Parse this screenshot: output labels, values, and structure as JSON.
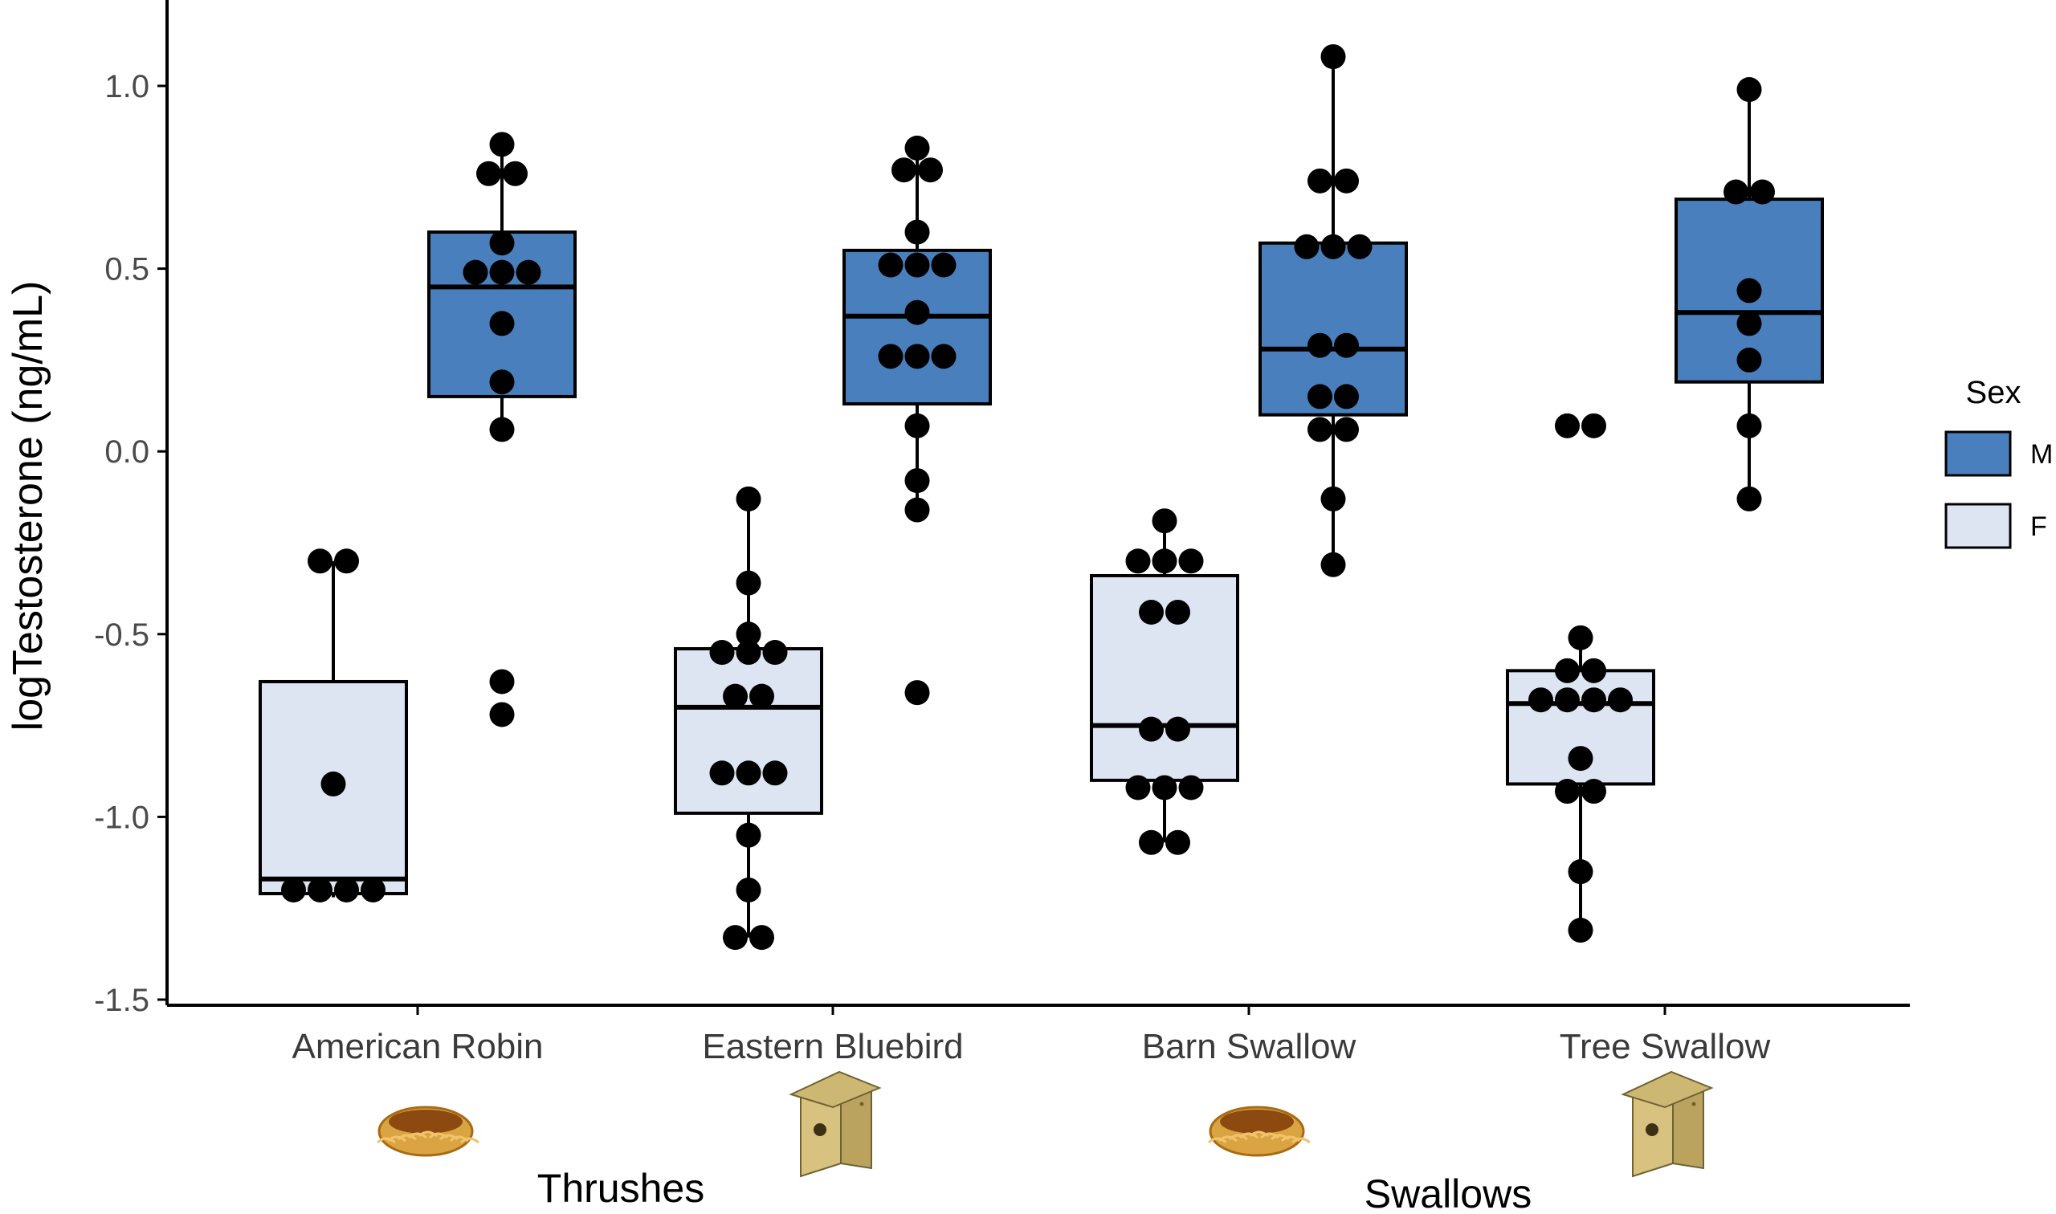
{
  "chart_data": {
    "type": "box",
    "ylabel": "logTestosterone (ng/mL)",
    "xlabel": "",
    "ylim": [
      -1.5,
      1.2
    ],
    "y_ticks": [
      1.0,
      0.5,
      0.0,
      -0.5,
      -1.0,
      -1.5
    ],
    "y_tick_labels": [
      "1.0",
      "0.5",
      "0.0",
      "-0.5",
      "-1.0",
      "-1.5"
    ],
    "grid": false,
    "categories": [
      "American Robin",
      "Eastern Bluebird",
      "Barn Swallow",
      "Tree Swallow"
    ],
    "category_icons": [
      "bird-nest-icon",
      "nest-box-icon",
      "bird-nest-icon",
      "nest-box-icon"
    ],
    "groups": [
      {
        "label": "Thrushes",
        "categories": [
          "American Robin",
          "Eastern Bluebird"
        ]
      },
      {
        "label": "Swallows",
        "categories": [
          "Barn Swallow",
          "Tree Swallow"
        ]
      }
    ],
    "legend": {
      "title": "Sex",
      "position": "right",
      "entries": [
        "M",
        "F"
      ]
    },
    "series": [
      {
        "name": "M",
        "color": "#4a7fbd",
        "boxes": [
          {
            "category": "American Robin",
            "min": 0.06,
            "q1": 0.15,
            "median": 0.45,
            "q3": 0.6,
            "max": 0.84,
            "points": [
              0.84,
              0.76,
              0.76,
              0.57,
              0.49,
              0.49,
              0.49,
              0.35,
              0.19,
              0.06,
              -0.63,
              -0.72
            ]
          },
          {
            "category": "Eastern Bluebird",
            "min": -0.16,
            "q1": 0.13,
            "median": 0.37,
            "q3": 0.55,
            "max": 0.83,
            "points": [
              0.83,
              0.77,
              0.77,
              0.6,
              0.51,
              0.51,
              0.51,
              0.38,
              0.26,
              0.26,
              0.26,
              0.07,
              -0.08,
              -0.16,
              -0.66
            ]
          },
          {
            "category": "Barn Swallow",
            "min": -0.31,
            "q1": 0.1,
            "median": 0.28,
            "q3": 0.57,
            "max": 1.08,
            "points": [
              1.08,
              0.74,
              0.74,
              0.56,
              0.56,
              0.56,
              0.29,
              0.29,
              0.15,
              0.15,
              0.06,
              0.06,
              -0.13,
              -0.31
            ]
          },
          {
            "category": "Tree Swallow",
            "min": -0.13,
            "q1": 0.19,
            "median": 0.38,
            "q3": 0.69,
            "max": 0.99,
            "points": [
              0.99,
              0.71,
              0.71,
              0.44,
              0.35,
              0.25,
              0.07,
              -0.13
            ]
          }
        ]
      },
      {
        "name": "F",
        "color": "#dce5f1",
        "boxes": [
          {
            "category": "American Robin",
            "min": -1.22,
            "q1": -1.21,
            "median": -1.17,
            "q3": -0.63,
            "max": -0.3,
            "points": [
              -0.3,
              -0.3,
              -0.91,
              -1.2,
              -1.2,
              -1.2,
              -1.2
            ]
          },
          {
            "category": "Eastern Bluebird",
            "min": -1.33,
            "q1": -0.99,
            "median": -0.7,
            "q3": -0.54,
            "max": -0.13,
            "points": [
              -0.13,
              -0.36,
              -0.5,
              -0.55,
              -0.55,
              -0.55,
              -0.67,
              -0.67,
              -0.88,
              -0.88,
              -0.88,
              -1.05,
              -1.2,
              -1.33,
              -1.33
            ]
          },
          {
            "category": "Barn Swallow",
            "min": -1.07,
            "q1": -0.9,
            "median": -0.75,
            "q3": -0.34,
            "max": -0.19,
            "points": [
              -0.19,
              -0.3,
              -0.3,
              -0.3,
              -0.44,
              -0.44,
              -0.76,
              -0.76,
              -0.92,
              -0.92,
              -0.92,
              -1.07,
              -1.07
            ]
          },
          {
            "category": "Tree Swallow",
            "min": -1.31,
            "q1": -0.91,
            "median": -0.69,
            "q3": -0.6,
            "max": -0.51,
            "points": [
              0.07,
              0.07,
              -0.51,
              -0.6,
              -0.6,
              -0.68,
              -0.68,
              -0.68,
              -0.68,
              -0.84,
              -0.93,
              -0.93,
              -1.15,
              -1.31
            ]
          }
        ]
      }
    ]
  }
}
